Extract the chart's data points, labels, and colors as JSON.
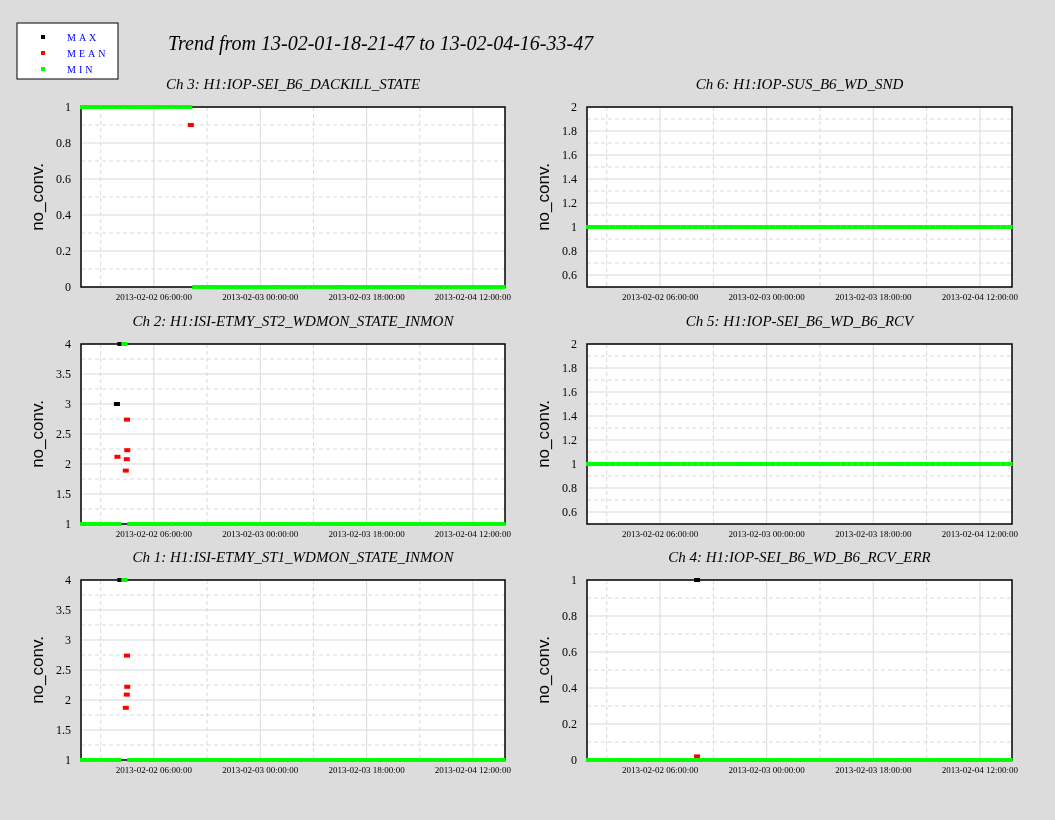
{
  "chart_data": [
    {
      "type": "other",
      "title": "Trend from 13-02-01-18-21-47 to 13-02-04-16-33-47"
    },
    {
      "type": "scatter",
      "title": "Ch 3: H1:IOP-SEI_B6_DACKILL_STATE",
      "ylabel": "no_conv.",
      "marker": "square",
      "grid": true,
      "x": [
        "2013-02-01T18:00",
        "2013-02-01T19:00",
        "2013-02-01T20:00",
        "2013-02-01T21:00",
        "2013-02-01T22:00",
        "2013-02-01T23:00",
        "2013-02-02T00:00",
        "2013-02-02T01:00",
        "2013-02-02T02:00",
        "2013-02-02T03:00",
        "2013-02-02T04:00",
        "2013-02-02T05:00",
        "2013-02-02T06:00",
        "2013-02-02T07:00",
        "2013-02-02T08:00",
        "2013-02-02T09:00",
        "2013-02-02T10:00",
        "2013-02-02T11:00",
        "2013-02-02T12:00",
        "2013-02-02T13:00",
        "2013-02-02T14:00",
        "2013-02-02T15:00",
        "2013-02-02T16:00",
        "2013-02-02T17:00",
        "2013-02-02T18:00",
        "2013-02-02T19:00",
        "2013-02-02T20:00",
        "2013-02-02T21:00",
        "2013-02-02T22:00",
        "2013-02-02T23:00",
        "2013-02-03T00:00",
        "2013-02-03T01:00",
        "2013-02-03T02:00",
        "2013-02-03T03:00",
        "2013-02-03T04:00",
        "2013-02-03T05:00",
        "2013-02-03T06:00",
        "2013-02-03T07:00",
        "2013-02-03T08:00",
        "2013-02-03T09:00",
        "2013-02-03T10:00",
        "2013-02-03T11:00",
        "2013-02-03T12:00",
        "2013-02-03T13:00",
        "2013-02-03T14:00",
        "2013-02-03T15:00",
        "2013-02-03T16:00",
        "2013-02-03T17:00",
        "2013-02-03T18:00",
        "2013-02-03T19:00",
        "2013-02-03T20:00",
        "2013-02-03T21:00",
        "2013-02-03T22:00",
        "2013-02-03T23:00",
        "2013-02-04T00:00",
        "2013-02-04T01:00",
        "2013-02-04T02:00",
        "2013-02-04T03:00",
        "2013-02-04T04:00",
        "2013-02-04T05:00",
        "2013-02-04T06:00",
        "2013-02-04T07:00",
        "2013-02-04T08:00",
        "2013-02-04T09:00",
        "2013-02-04T10:00",
        "2013-02-04T11:00",
        "2013-02-04T12:00",
        "2013-02-04T13:00",
        "2013-02-04T14:00",
        "2013-02-04T15:00",
        "2013-02-04T16:00",
        "2013-02-04T17:00"
      ],
      "xlim": [
        "2013-02-01T17:40",
        "2013-02-04T17:25"
      ],
      "xticks": [
        {
          "value": "2013-02-01T21:00",
          "label": null
        },
        {
          "value": "2013-02-02T06:00",
          "label": "2013-02-02 06:00:00"
        },
        {
          "value": "2013-02-02T15:00",
          "label": null
        },
        {
          "value": "2013-02-03T00:00",
          "label": "2013-02-03 00:00:00"
        },
        {
          "value": "2013-02-03T09:00",
          "label": null
        },
        {
          "value": "2013-02-03T18:00",
          "label": "2013-02-03 18:00:00"
        },
        {
          "value": "2013-02-04T03:00",
          "label": null
        },
        {
          "value": "2013-02-04T12:00",
          "label": "2013-02-04 12:00:00"
        }
      ],
      "ylim": [
        0,
        1
      ],
      "yticks": [
        0,
        {
          "value": 0.1,
          "label": null
        },
        0.2,
        {
          "value": 0.3,
          "label": null
        },
        0.4,
        {
          "value": 0.5,
          "label": null
        },
        0.6,
        {
          "value": 0.7,
          "label": null
        },
        0.8,
        {
          "value": 0.9,
          "label": null
        },
        1
      ],
      "series": [
        {
          "color": "#ff0000",
          "x": [
            "2013-02-02T12:15"
          ],
          "values": [
            0.9
          ]
        },
        {
          "color": "#00ff00",
          "values": [
            1,
            1,
            1,
            1,
            1,
            1,
            1,
            1,
            1,
            1,
            1,
            1,
            1,
            1,
            1,
            1,
            1,
            1,
            1,
            0,
            0,
            0,
            0,
            0,
            0,
            0,
            0,
            0,
            0,
            0,
            0,
            0,
            0,
            0,
            0,
            0,
            0,
            0,
            0,
            0,
            0,
            0,
            0,
            0,
            0,
            0,
            0,
            0,
            0,
            0,
            0,
            0,
            0,
            0,
            0,
            0,
            0,
            0,
            0,
            0,
            0,
            0,
            0,
            0,
            0,
            0,
            0,
            0,
            0,
            0,
            0,
            0
          ]
        }
      ]
    },
    {
      "type": "scatter",
      "title": "Ch 6: H1:IOP-SUS_B6_WD_SND",
      "ylabel": "no_conv.",
      "marker": "square",
      "grid": true,
      "x": [
        "2013-02-01T18:00",
        "2013-02-01T19:00",
        "2013-02-01T20:00",
        "2013-02-01T21:00",
        "2013-02-01T22:00",
        "2013-02-01T23:00",
        "2013-02-02T00:00",
        "2013-02-02T01:00",
        "2013-02-02T02:00",
        "2013-02-02T03:00",
        "2013-02-02T04:00",
        "2013-02-02T05:00",
        "2013-02-02T06:00",
        "2013-02-02T07:00",
        "2013-02-02T08:00",
        "2013-02-02T09:00",
        "2013-02-02T10:00",
        "2013-02-02T11:00",
        "2013-02-02T12:00",
        "2013-02-02T13:00",
        "2013-02-02T14:00",
        "2013-02-02T15:00",
        "2013-02-02T16:00",
        "2013-02-02T17:00",
        "2013-02-02T18:00",
        "2013-02-02T19:00",
        "2013-02-02T20:00",
        "2013-02-02T21:00",
        "2013-02-02T22:00",
        "2013-02-02T23:00",
        "2013-02-03T00:00",
        "2013-02-03T01:00",
        "2013-02-03T02:00",
        "2013-02-03T03:00",
        "2013-02-03T04:00",
        "2013-02-03T05:00",
        "2013-02-03T06:00",
        "2013-02-03T07:00",
        "2013-02-03T08:00",
        "2013-02-03T09:00",
        "2013-02-03T10:00",
        "2013-02-03T11:00",
        "2013-02-03T12:00",
        "2013-02-03T13:00",
        "2013-02-03T14:00",
        "2013-02-03T15:00",
        "2013-02-03T16:00",
        "2013-02-03T17:00",
        "2013-02-03T18:00",
        "2013-02-03T19:00",
        "2013-02-03T20:00",
        "2013-02-03T21:00",
        "2013-02-03T22:00",
        "2013-02-03T23:00",
        "2013-02-04T00:00",
        "2013-02-04T01:00",
        "2013-02-04T02:00",
        "2013-02-04T03:00",
        "2013-02-04T04:00",
        "2013-02-04T05:00",
        "2013-02-04T06:00",
        "2013-02-04T07:00",
        "2013-02-04T08:00",
        "2013-02-04T09:00",
        "2013-02-04T10:00",
        "2013-02-04T11:00",
        "2013-02-04T12:00",
        "2013-02-04T13:00",
        "2013-02-04T14:00",
        "2013-02-04T15:00",
        "2013-02-04T16:00",
        "2013-02-04T17:00"
      ],
      "xlim": [
        "2013-02-01T17:40",
        "2013-02-04T17:25"
      ],
      "xticks": [
        {
          "value": "2013-02-01T21:00",
          "label": null
        },
        {
          "value": "2013-02-02T06:00",
          "label": "2013-02-02 06:00:00"
        },
        {
          "value": "2013-02-02T15:00",
          "label": null
        },
        {
          "value": "2013-02-03T00:00",
          "label": "2013-02-03 00:00:00"
        },
        {
          "value": "2013-02-03T09:00",
          "label": null
        },
        {
          "value": "2013-02-03T18:00",
          "label": "2013-02-03 18:00:00"
        },
        {
          "value": "2013-02-04T03:00",
          "label": null
        },
        {
          "value": "2013-02-04T12:00",
          "label": "2013-02-04 12:00:00"
        }
      ],
      "ylim": [
        0.5,
        2
      ],
      "yticks": [
        0.6,
        {
          "value": 0.7,
          "label": null
        },
        0.8,
        {
          "value": 0.9,
          "label": null
        },
        1,
        {
          "value": 1.1,
          "label": null
        },
        1.2,
        {
          "value": 1.3,
          "label": null
        },
        1.4,
        {
          "value": 1.5,
          "label": null
        },
        1.6,
        {
          "value": 1.7,
          "label": null
        },
        1.8,
        {
          "value": 1.9,
          "label": null
        },
        2
      ],
      "series": [
        {
          "color": "#00ff00",
          "values": [
            1,
            1,
            1,
            1,
            1,
            1,
            1,
            1,
            1,
            1,
            1,
            1,
            1,
            1,
            1,
            1,
            1,
            1,
            1,
            1,
            1,
            1,
            1,
            1,
            1,
            1,
            1,
            1,
            1,
            1,
            1,
            1,
            1,
            1,
            1,
            1,
            1,
            1,
            1,
            1,
            1,
            1,
            1,
            1,
            1,
            1,
            1,
            1,
            1,
            1,
            1,
            1,
            1,
            1,
            1,
            1,
            1,
            1,
            1,
            1,
            1,
            1,
            1,
            1,
            1,
            1,
            1,
            1,
            1,
            1,
            1,
            1
          ]
        }
      ]
    },
    {
      "type": "scatter",
      "title": "Ch 2: H1:ISI-ETMY_ST2_WDMON_STATE_INMON",
      "ylabel": "no_conv.",
      "marker": "square",
      "grid": true,
      "legend": "top left",
      "x": [
        "2013-02-01T18:00",
        "2013-02-01T19:00",
        "2013-02-01T20:00",
        "2013-02-01T21:00",
        "2013-02-01T22:00",
        "2013-02-01T23:00",
        "2013-02-02T00:00",
        "2013-02-02T01:00",
        "2013-02-02T02:00",
        "2013-02-02T03:00",
        "2013-02-02T04:00",
        "2013-02-02T05:00",
        "2013-02-02T06:00",
        "2013-02-02T07:00",
        "2013-02-02T08:00",
        "2013-02-02T09:00",
        "2013-02-02T10:00",
        "2013-02-02T11:00",
        "2013-02-02T12:00",
        "2013-02-02T13:00",
        "2013-02-02T14:00",
        "2013-02-02T15:00",
        "2013-02-02T16:00",
        "2013-02-02T17:00",
        "2013-02-02T18:00",
        "2013-02-02T19:00",
        "2013-02-02T20:00",
        "2013-02-02T21:00",
        "2013-02-02T22:00",
        "2013-02-02T23:00",
        "2013-02-03T00:00",
        "2013-02-03T01:00",
        "2013-02-03T02:00",
        "2013-02-03T03:00",
        "2013-02-03T04:00",
        "2013-02-03T05:00",
        "2013-02-03T06:00",
        "2013-02-03T07:00",
        "2013-02-03T08:00",
        "2013-02-03T09:00",
        "2013-02-03T10:00",
        "2013-02-03T11:00",
        "2013-02-03T12:00",
        "2013-02-03T13:00",
        "2013-02-03T14:00",
        "2013-02-03T15:00",
        "2013-02-03T16:00",
        "2013-02-03T17:00",
        "2013-02-03T18:00",
        "2013-02-03T19:00",
        "2013-02-03T20:00",
        "2013-02-03T21:00",
        "2013-02-03T22:00",
        "2013-02-03T23:00",
        "2013-02-04T00:00",
        "2013-02-04T01:00",
        "2013-02-04T02:00",
        "2013-02-04T03:00",
        "2013-02-04T04:00",
        "2013-02-04T05:00",
        "2013-02-04T06:00",
        "2013-02-04T07:00",
        "2013-02-04T08:00",
        "2013-02-04T09:00",
        "2013-02-04T10:00",
        "2013-02-04T11:00",
        "2013-02-04T12:00",
        "2013-02-04T13:00",
        "2013-02-04T14:00",
        "2013-02-04T15:00",
        "2013-02-04T16:00",
        "2013-02-04T17:00"
      ],
      "xlim": [
        "2013-02-01T17:40",
        "2013-02-04T17:25"
      ],
      "xticks": [
        {
          "value": "2013-02-01T21:00",
          "label": null
        },
        {
          "value": "2013-02-02T06:00",
          "label": "2013-02-02 06:00:00"
        },
        {
          "value": "2013-02-02T15:00",
          "label": null
        },
        {
          "value": "2013-02-03T00:00",
          "label": "2013-02-03 00:00:00"
        },
        {
          "value": "2013-02-03T09:00",
          "label": null
        },
        {
          "value": "2013-02-03T18:00",
          "label": "2013-02-03 18:00:00"
        },
        {
          "value": "2013-02-04T03:00",
          "label": null
        },
        {
          "value": "2013-02-04T12:00",
          "label": "2013-02-04 12:00:00"
        }
      ],
      "ylim": [
        1,
        4
      ],
      "yticks": [
        1,
        {
          "value": 1.25,
          "label": null
        },
        1.5,
        {
          "value": 1.75,
          "label": null
        },
        2,
        {
          "value": 2.25,
          "label": null
        },
        2.5,
        {
          "value": 2.75,
          "label": null
        },
        3,
        {
          "value": 3.25,
          "label": null
        },
        3.5,
        {
          "value": 3.75,
          "label": null
        },
        4
      ],
      "series": [
        {
          "name": "MAX",
          "color": "#000000",
          "x": [
            "2013-02-01T23:45",
            "2013-02-02T00:20"
          ],
          "values": [
            3,
            4
          ]
        },
        {
          "name": "MEAN",
          "color": "#ff0000",
          "x": [
            "2013-02-01T23:50",
            "2013-02-02T01:27",
            "2013-02-02T01:30",
            "2013-02-02T01:25",
            "2013-02-02T01:15"
          ],
          "values": [
            2.12,
            2.74,
            2.23,
            2.08,
            1.89
          ]
        },
        {
          "name": "MIN",
          "color": "#00ff00",
          "values": [
            1,
            1,
            1,
            1,
            1,
            1,
            1,
            4,
            1,
            1,
            1,
            1,
            1,
            1,
            1,
            1,
            1,
            1,
            1,
            1,
            1,
            1,
            1,
            1,
            1,
            1,
            1,
            1,
            1,
            1,
            1,
            1,
            1,
            1,
            1,
            1,
            1,
            1,
            1,
            1,
            1,
            1,
            1,
            1,
            1,
            1,
            1,
            1,
            1,
            1,
            1,
            1,
            1,
            1,
            1,
            1,
            1,
            1,
            1,
            1,
            1,
            1,
            1,
            1,
            1,
            1,
            1,
            1,
            1,
            1,
            1,
            1
          ]
        }
      ]
    },
    {
      "type": "scatter",
      "title": "Ch 5: H1:IOP-SEI_B6_WD_B6_RCV",
      "ylabel": "no_conv.",
      "marker": "square",
      "grid": true,
      "x": [
        "2013-02-01T18:00",
        "2013-02-01T19:00",
        "2013-02-01T20:00",
        "2013-02-01T21:00",
        "2013-02-01T22:00",
        "2013-02-01T23:00",
        "2013-02-02T00:00",
        "2013-02-02T01:00",
        "2013-02-02T02:00",
        "2013-02-02T03:00",
        "2013-02-02T04:00",
        "2013-02-02T05:00",
        "2013-02-02T06:00",
        "2013-02-02T07:00",
        "2013-02-02T08:00",
        "2013-02-02T09:00",
        "2013-02-02T10:00",
        "2013-02-02T11:00",
        "2013-02-02T12:00",
        "2013-02-02T13:00",
        "2013-02-02T14:00",
        "2013-02-02T15:00",
        "2013-02-02T16:00",
        "2013-02-02T17:00",
        "2013-02-02T18:00",
        "2013-02-02T19:00",
        "2013-02-02T20:00",
        "2013-02-02T21:00",
        "2013-02-02T22:00",
        "2013-02-02T23:00",
        "2013-02-03T00:00",
        "2013-02-03T01:00",
        "2013-02-03T02:00",
        "2013-02-03T03:00",
        "2013-02-03T04:00",
        "2013-02-03T05:00",
        "2013-02-03T06:00",
        "2013-02-03T07:00",
        "2013-02-03T08:00",
        "2013-02-03T09:00",
        "2013-02-03T10:00",
        "2013-02-03T11:00",
        "2013-02-03T12:00",
        "2013-02-03T13:00",
        "2013-02-03T14:00",
        "2013-02-03T15:00",
        "2013-02-03T16:00",
        "2013-02-03T17:00",
        "2013-02-03T18:00",
        "2013-02-03T19:00",
        "2013-02-03T20:00",
        "2013-02-03T21:00",
        "2013-02-03T22:00",
        "2013-02-03T23:00",
        "2013-02-04T00:00",
        "2013-02-04T01:00",
        "2013-02-04T02:00",
        "2013-02-04T03:00",
        "2013-02-04T04:00",
        "2013-02-04T05:00",
        "2013-02-04T06:00",
        "2013-02-04T07:00",
        "2013-02-04T08:00",
        "2013-02-04T09:00",
        "2013-02-04T10:00",
        "2013-02-04T11:00",
        "2013-02-04T12:00",
        "2013-02-04T13:00",
        "2013-02-04T14:00",
        "2013-02-04T15:00",
        "2013-02-04T16:00",
        "2013-02-04T17:00"
      ],
      "xlim": [
        "2013-02-01T17:40",
        "2013-02-04T17:25"
      ],
      "xticks": [
        {
          "value": "2013-02-01T21:00",
          "label": null
        },
        {
          "value": "2013-02-02T06:00",
          "label": "2013-02-02 06:00:00"
        },
        {
          "value": "2013-02-02T15:00",
          "label": null
        },
        {
          "value": "2013-02-03T00:00",
          "label": "2013-02-03 00:00:00"
        },
        {
          "value": "2013-02-03T09:00",
          "label": null
        },
        {
          "value": "2013-02-03T18:00",
          "label": "2013-02-03 18:00:00"
        },
        {
          "value": "2013-02-04T03:00",
          "label": null
        },
        {
          "value": "2013-02-04T12:00",
          "label": "2013-02-04 12:00:00"
        }
      ],
      "ylim": [
        0.5,
        2
      ],
      "yticks": [
        0.6,
        {
          "value": 0.7,
          "label": null
        },
        0.8,
        {
          "value": 0.9,
          "label": null
        },
        1,
        {
          "value": 1.1,
          "label": null
        },
        1.2,
        {
          "value": 1.3,
          "label": null
        },
        1.4,
        {
          "value": 1.5,
          "label": null
        },
        1.6,
        {
          "value": 1.7,
          "label": null
        },
        1.8,
        {
          "value": 1.9,
          "label": null
        },
        2
      ],
      "series": [
        {
          "color": "#00ff00",
          "values": [
            1,
            1,
            1,
            1,
            1,
            1,
            1,
            1,
            1,
            1,
            1,
            1,
            1,
            1,
            1,
            1,
            1,
            1,
            1,
            1,
            1,
            1,
            1,
            1,
            1,
            1,
            1,
            1,
            1,
            1,
            1,
            1,
            1,
            1,
            1,
            1,
            1,
            1,
            1,
            1,
            1,
            1,
            1,
            1,
            1,
            1,
            1,
            1,
            1,
            1,
            1,
            1,
            1,
            1,
            1,
            1,
            1,
            1,
            1,
            1,
            1,
            1,
            1,
            1,
            1,
            1,
            1,
            1,
            1,
            1,
            1,
            1
          ]
        }
      ]
    },
    {
      "type": "scatter",
      "title": "Ch 1: H1:ISI-ETMY_ST1_WDMON_STATE_INMON",
      "ylabel": "no_conv.",
      "marker": "square",
      "grid": true,
      "x": [
        "2013-02-01T18:00",
        "2013-02-01T19:00",
        "2013-02-01T20:00",
        "2013-02-01T21:00",
        "2013-02-01T22:00",
        "2013-02-01T23:00",
        "2013-02-02T00:00",
        "2013-02-02T01:00",
        "2013-02-02T02:00",
        "2013-02-02T03:00",
        "2013-02-02T04:00",
        "2013-02-02T05:00",
        "2013-02-02T06:00",
        "2013-02-02T07:00",
        "2013-02-02T08:00",
        "2013-02-02T09:00",
        "2013-02-02T10:00",
        "2013-02-02T11:00",
        "2013-02-02T12:00",
        "2013-02-02T13:00",
        "2013-02-02T14:00",
        "2013-02-02T15:00",
        "2013-02-02T16:00",
        "2013-02-02T17:00",
        "2013-02-02T18:00",
        "2013-02-02T19:00",
        "2013-02-02T20:00",
        "2013-02-02T21:00",
        "2013-02-02T22:00",
        "2013-02-02T23:00",
        "2013-02-03T00:00",
        "2013-02-03T01:00",
        "2013-02-03T02:00",
        "2013-02-03T03:00",
        "2013-02-03T04:00",
        "2013-02-03T05:00",
        "2013-02-03T06:00",
        "2013-02-03T07:00",
        "2013-02-03T08:00",
        "2013-02-03T09:00",
        "2013-02-03T10:00",
        "2013-02-03T11:00",
        "2013-02-03T12:00",
        "2013-02-03T13:00",
        "2013-02-03T14:00",
        "2013-02-03T15:00",
        "2013-02-03T16:00",
        "2013-02-03T17:00",
        "2013-02-03T18:00",
        "2013-02-03T19:00",
        "2013-02-03T20:00",
        "2013-02-03T21:00",
        "2013-02-03T22:00",
        "2013-02-03T23:00",
        "2013-02-04T00:00",
        "2013-02-04T01:00",
        "2013-02-04T02:00",
        "2013-02-04T03:00",
        "2013-02-04T04:00",
        "2013-02-04T05:00",
        "2013-02-04T06:00",
        "2013-02-04T07:00",
        "2013-02-04T08:00",
        "2013-02-04T09:00",
        "2013-02-04T10:00",
        "2013-02-04T11:00",
        "2013-02-04T12:00",
        "2013-02-04T13:00",
        "2013-02-04T14:00",
        "2013-02-04T15:00",
        "2013-02-04T16:00",
        "2013-02-04T17:00"
      ],
      "xlim": [
        "2013-02-01T17:40",
        "2013-02-04T17:25"
      ],
      "xticks": [
        {
          "value": "2013-02-01T21:00",
          "label": null
        },
        {
          "value": "2013-02-02T06:00",
          "label": "2013-02-02 06:00:00"
        },
        {
          "value": "2013-02-02T15:00",
          "label": null
        },
        {
          "value": "2013-02-03T00:00",
          "label": "2013-02-03 00:00:00"
        },
        {
          "value": "2013-02-03T09:00",
          "label": null
        },
        {
          "value": "2013-02-03T18:00",
          "label": "2013-02-03 18:00:00"
        },
        {
          "value": "2013-02-04T03:00",
          "label": null
        },
        {
          "value": "2013-02-04T12:00",
          "label": "2013-02-04 12:00:00"
        }
      ],
      "ylim": [
        1,
        4
      ],
      "yticks": [
        1,
        {
          "value": 1.25,
          "label": null
        },
        1.5,
        {
          "value": 1.75,
          "label": null
        },
        2,
        {
          "value": 2.25,
          "label": null
        },
        2.5,
        {
          "value": 2.75,
          "label": null
        },
        3,
        {
          "value": 3.25,
          "label": null
        },
        3.5,
        {
          "value": 3.75,
          "label": null
        },
        4
      ],
      "series": [
        {
          "color": "#000000",
          "x": [
            "2013-02-02T00:20"
          ],
          "values": [
            4
          ]
        },
        {
          "color": "#ff0000",
          "x": [
            "2013-02-02T01:27",
            "2013-02-02T01:30",
            "2013-02-02T01:25",
            "2013-02-02T01:15"
          ],
          "values": [
            2.74,
            2.22,
            2.09,
            1.87
          ]
        },
        {
          "color": "#00ff00",
          "values": [
            1,
            1,
            1,
            1,
            1,
            1,
            1,
            4,
            1,
            1,
            1,
            1,
            1,
            1,
            1,
            1,
            1,
            1,
            1,
            1,
            1,
            1,
            1,
            1,
            1,
            1,
            1,
            1,
            1,
            1,
            1,
            1,
            1,
            1,
            1,
            1,
            1,
            1,
            1,
            1,
            1,
            1,
            1,
            1,
            1,
            1,
            1,
            1,
            1,
            1,
            1,
            1,
            1,
            1,
            1,
            1,
            1,
            1,
            1,
            1,
            1,
            1,
            1,
            1,
            1,
            1,
            1,
            1,
            1,
            1,
            1,
            1
          ]
        }
      ]
    },
    {
      "type": "scatter",
      "title": "Ch 4: H1:IOP-SEI_B6_WD_B6_RCV_ERR",
      "ylabel": "no_conv.",
      "marker": "square",
      "grid": true,
      "x": [
        "2013-02-01T18:00",
        "2013-02-01T19:00",
        "2013-02-01T20:00",
        "2013-02-01T21:00",
        "2013-02-01T22:00",
        "2013-02-01T23:00",
        "2013-02-02T00:00",
        "2013-02-02T01:00",
        "2013-02-02T02:00",
        "2013-02-02T03:00",
        "2013-02-02T04:00",
        "2013-02-02T05:00",
        "2013-02-02T06:00",
        "2013-02-02T07:00",
        "2013-02-02T08:00",
        "2013-02-02T09:00",
        "2013-02-02T10:00",
        "2013-02-02T11:00",
        "2013-02-02T12:00",
        "2013-02-02T13:00",
        "2013-02-02T14:00",
        "2013-02-02T15:00",
        "2013-02-02T16:00",
        "2013-02-02T17:00",
        "2013-02-02T18:00",
        "2013-02-02T19:00",
        "2013-02-02T20:00",
        "2013-02-02T21:00",
        "2013-02-02T22:00",
        "2013-02-02T23:00",
        "2013-02-03T00:00",
        "2013-02-03T01:00",
        "2013-02-03T02:00",
        "2013-02-03T03:00",
        "2013-02-03T04:00",
        "2013-02-03T05:00",
        "2013-02-03T06:00",
        "2013-02-03T07:00",
        "2013-02-03T08:00",
        "2013-02-03T09:00",
        "2013-02-03T10:00",
        "2013-02-03T11:00",
        "2013-02-03T12:00",
        "2013-02-03T13:00",
        "2013-02-03T14:00",
        "2013-02-03T15:00",
        "2013-02-03T16:00",
        "2013-02-03T17:00",
        "2013-02-03T18:00",
        "2013-02-03T19:00",
        "2013-02-03T20:00",
        "2013-02-03T21:00",
        "2013-02-03T22:00",
        "2013-02-03T23:00",
        "2013-02-04T00:00",
        "2013-02-04T01:00",
        "2013-02-04T02:00",
        "2013-02-04T03:00",
        "2013-02-04T04:00",
        "2013-02-04T05:00",
        "2013-02-04T06:00",
        "2013-02-04T07:00",
        "2013-02-04T08:00",
        "2013-02-04T09:00",
        "2013-02-04T10:00",
        "2013-02-04T11:00",
        "2013-02-04T12:00",
        "2013-02-04T13:00",
        "2013-02-04T14:00",
        "2013-02-04T15:00",
        "2013-02-04T16:00",
        "2013-02-04T17:00"
      ],
      "xlim": [
        "2013-02-01T17:40",
        "2013-02-04T17:25"
      ],
      "xticks": [
        {
          "value": "2013-02-01T21:00",
          "label": null
        },
        {
          "value": "2013-02-02T06:00",
          "label": "2013-02-02 06:00:00"
        },
        {
          "value": "2013-02-02T15:00",
          "label": null
        },
        {
          "value": "2013-02-03T00:00",
          "label": "2013-02-03 00:00:00"
        },
        {
          "value": "2013-02-03T09:00",
          "label": null
        },
        {
          "value": "2013-02-03T18:00",
          "label": "2013-02-03 18:00:00"
        },
        {
          "value": "2013-02-04T03:00",
          "label": null
        },
        {
          "value": "2013-02-04T12:00",
          "label": "2013-02-04 12:00:00"
        }
      ],
      "ylim": [
        0,
        1
      ],
      "yticks": [
        0,
        {
          "value": 0.1,
          "label": null
        },
        0.2,
        {
          "value": 0.3,
          "label": null
        },
        0.4,
        {
          "value": 0.5,
          "label": null
        },
        0.6,
        {
          "value": 0.7,
          "label": null
        },
        0.8,
        {
          "value": 0.9,
          "label": null
        },
        1
      ],
      "series": [
        {
          "color": "#000000",
          "x": [
            "2013-02-02T12:15"
          ],
          "values": [
            1
          ]
        },
        {
          "color": "#ff0000",
          "x": [
            "2013-02-02T12:15"
          ],
          "values": [
            0.02
          ]
        },
        {
          "color": "#00ff00",
          "values": [
            0,
            0,
            0,
            0,
            0,
            0,
            0,
            0,
            0,
            0,
            0,
            0,
            0,
            0,
            0,
            0,
            0,
            0,
            0,
            0,
            0,
            0,
            0,
            0,
            0,
            0,
            0,
            0,
            0,
            0,
            0,
            0,
            0,
            0,
            0,
            0,
            0,
            0,
            0,
            0,
            0,
            0,
            0,
            0,
            0,
            0,
            0,
            0,
            0,
            0,
            0,
            0,
            0,
            0,
            0,
            0,
            0,
            0,
            0,
            0,
            0,
            0,
            0,
            0,
            0,
            0,
            0,
            0,
            0,
            0,
            0,
            0
          ]
        }
      ]
    }
  ]
}
